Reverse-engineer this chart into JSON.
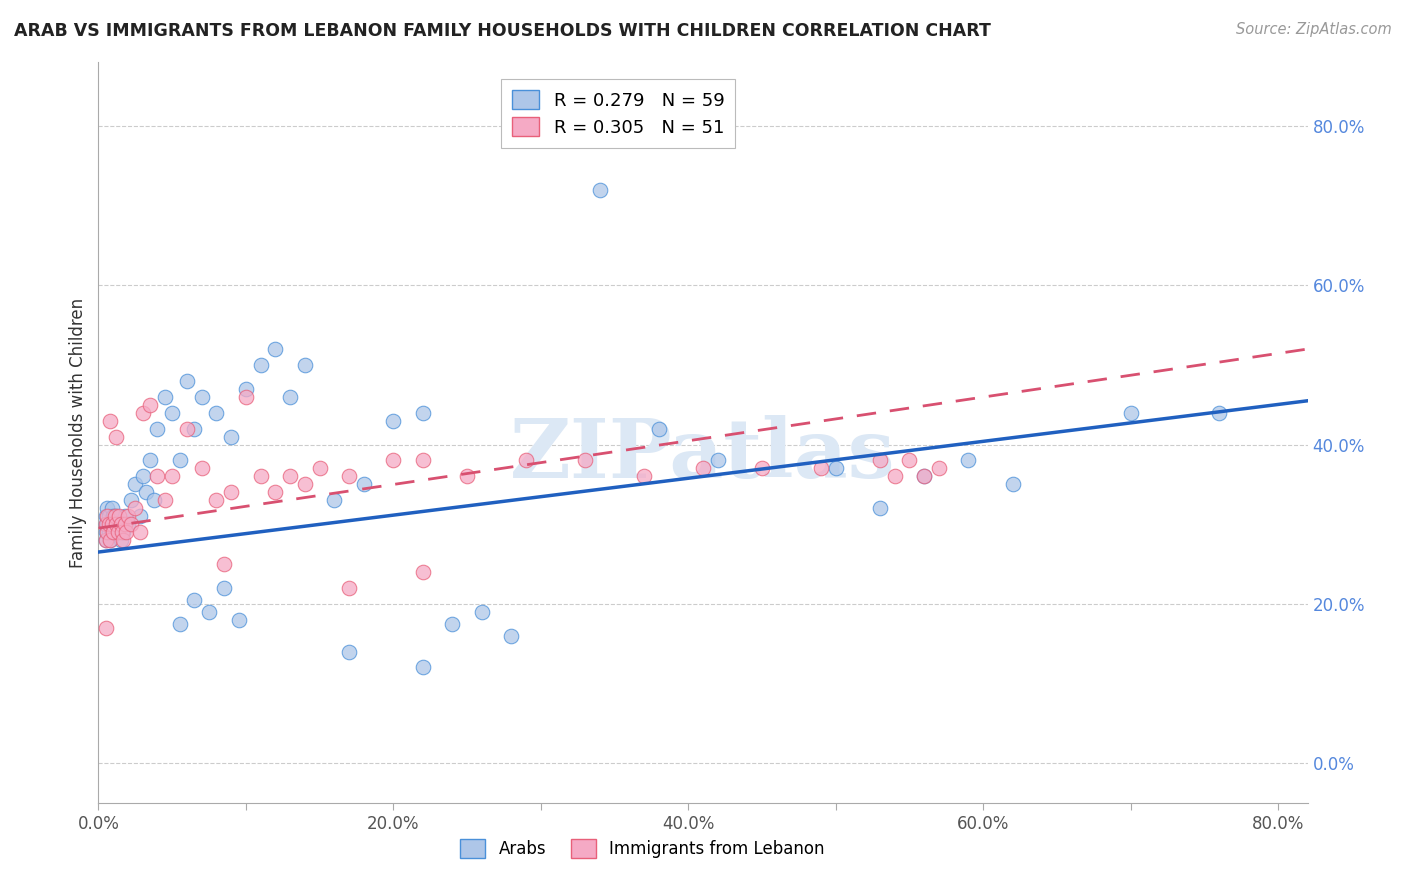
{
  "title": "ARAB VS IMMIGRANTS FROM LEBANON FAMILY HOUSEHOLDS WITH CHILDREN CORRELATION CHART",
  "source": "Source: ZipAtlas.com",
  "ylabel": "Family Households with Children",
  "x_tick_positions": [
    0.0,
    0.1,
    0.2,
    0.3,
    0.4,
    0.5,
    0.6,
    0.7,
    0.8
  ],
  "x_tick_labels": [
    "0.0%",
    "",
    "20.0%",
    "",
    "40.0%",
    "",
    "60.0%",
    "",
    "80.0%"
  ],
  "y_ticks": [
    0.0,
    0.2,
    0.4,
    0.6,
    0.8
  ],
  "y_tick_labels_right": [
    "0.0%",
    "20.0%",
    "40.0%",
    "60.0%",
    "80.0%"
  ],
  "xlim": [
    0.0,
    0.82
  ],
  "ylim": [
    -0.05,
    0.88
  ],
  "legend_arab": "R = 0.279   N = 59",
  "legend_leb": "R = 0.305   N = 51",
  "legend_arab_bottom": "Arabs",
  "legend_leb_bottom": "Immigrants from Lebanon",
  "color_arab_fill": "#aec6e8",
  "color_leb_fill": "#f5aac5",
  "color_arab_edge": "#4a90d9",
  "color_leb_edge": "#e8607a",
  "color_arab_line": "#2060c0",
  "color_leb_line": "#d85070",
  "color_right_labels": "#5588dd",
  "color_grid": "#cccccc",
  "watermark_text": "ZIPatlas",
  "watermark_color": "#dce8f5",
  "arab_line_x0": 0.0,
  "arab_line_y0": 0.265,
  "arab_line_x1": 0.82,
  "arab_line_y1": 0.455,
  "leb_line_x0": 0.0,
  "leb_line_y0": 0.295,
  "leb_line_x1": 0.82,
  "leb_line_y1": 0.52,
  "arab_x": [
    0.005,
    0.005,
    0.005,
    0.005,
    0.006,
    0.006,
    0.007,
    0.007,
    0.008,
    0.008,
    0.009,
    0.009,
    0.01,
    0.01,
    0.01,
    0.011,
    0.012,
    0.013,
    0.014,
    0.015,
    0.016,
    0.017,
    0.018,
    0.02,
    0.022,
    0.025,
    0.028,
    0.03,
    0.032,
    0.035,
    0.038,
    0.04,
    0.045,
    0.05,
    0.055,
    0.06,
    0.065,
    0.07,
    0.08,
    0.09,
    0.1,
    0.11,
    0.12,
    0.13,
    0.14,
    0.16,
    0.18,
    0.2,
    0.22,
    0.34,
    0.38,
    0.42,
    0.5,
    0.53,
    0.56,
    0.59,
    0.62,
    0.7,
    0.76
  ],
  "arab_y": [
    0.29,
    0.31,
    0.3,
    0.28,
    0.32,
    0.3,
    0.29,
    0.31,
    0.3,
    0.28,
    0.32,
    0.29,
    0.3,
    0.31,
    0.29,
    0.3,
    0.31,
    0.29,
    0.3,
    0.28,
    0.3,
    0.29,
    0.31,
    0.3,
    0.33,
    0.35,
    0.31,
    0.36,
    0.34,
    0.38,
    0.33,
    0.42,
    0.46,
    0.44,
    0.38,
    0.48,
    0.42,
    0.46,
    0.44,
    0.41,
    0.47,
    0.5,
    0.52,
    0.46,
    0.5,
    0.33,
    0.35,
    0.43,
    0.44,
    0.72,
    0.42,
    0.38,
    0.37,
    0.32,
    0.36,
    0.38,
    0.35,
    0.44,
    0.44
  ],
  "arab_y_extra": [
    0.175,
    0.205,
    0.19,
    0.22,
    0.18,
    0.14,
    0.12,
    0.175,
    0.19,
    0.16
  ],
  "arab_x_extra": [
    0.055,
    0.065,
    0.075,
    0.085,
    0.095,
    0.17,
    0.22,
    0.24,
    0.26,
    0.28
  ],
  "leb_x": [
    0.005,
    0.005,
    0.006,
    0.006,
    0.007,
    0.008,
    0.009,
    0.01,
    0.011,
    0.012,
    0.013,
    0.014,
    0.015,
    0.016,
    0.017,
    0.018,
    0.019,
    0.02,
    0.022,
    0.025,
    0.028,
    0.03,
    0.035,
    0.04,
    0.045,
    0.05,
    0.06,
    0.07,
    0.08,
    0.09,
    0.1,
    0.11,
    0.12,
    0.13,
    0.14,
    0.15,
    0.17,
    0.2,
    0.22,
    0.25,
    0.29,
    0.33,
    0.37,
    0.41,
    0.45,
    0.49,
    0.53,
    0.54,
    0.55,
    0.56,
    0.57
  ],
  "leb_y": [
    0.28,
    0.3,
    0.29,
    0.31,
    0.3,
    0.28,
    0.3,
    0.29,
    0.31,
    0.3,
    0.29,
    0.31,
    0.3,
    0.29,
    0.28,
    0.3,
    0.29,
    0.31,
    0.3,
    0.32,
    0.29,
    0.44,
    0.45,
    0.36,
    0.33,
    0.36,
    0.42,
    0.37,
    0.33,
    0.34,
    0.46,
    0.36,
    0.34,
    0.36,
    0.35,
    0.37,
    0.36,
    0.38,
    0.38,
    0.36,
    0.38,
    0.38,
    0.36,
    0.37,
    0.37,
    0.37,
    0.38,
    0.36,
    0.38,
    0.36,
    0.37
  ],
  "leb_y_extra": [
    0.43,
    0.41,
    0.25,
    0.22,
    0.17,
    0.24
  ],
  "leb_x_extra": [
    0.008,
    0.012,
    0.085,
    0.17,
    0.005,
    0.22
  ]
}
